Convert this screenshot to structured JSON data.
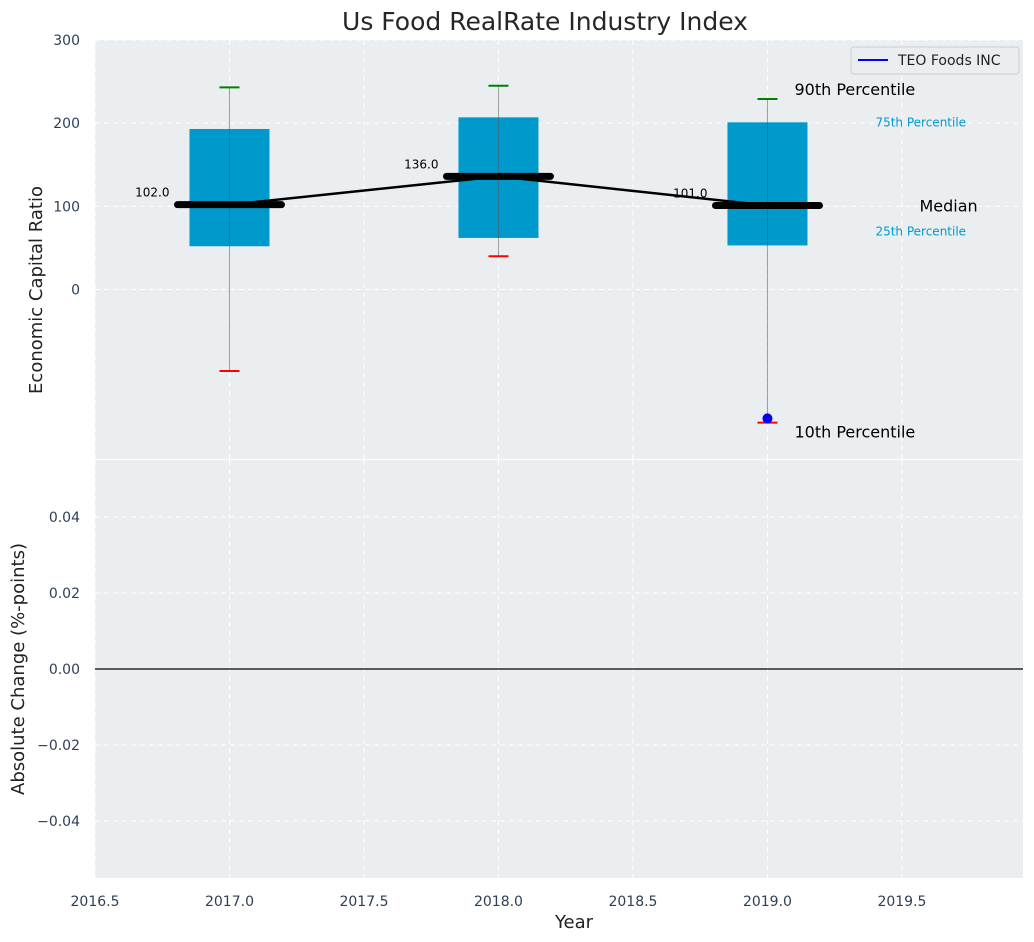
{
  "title": "Us Food RealRate Industry Index",
  "colors": {
    "panel_bg": "#eaeef0",
    "box": "#0099cc",
    "whisker_high": "#008000",
    "whisker_low": "#ff0000",
    "median": "#000000",
    "company": "#0000ff",
    "annot_small": "#0099cc"
  },
  "chart_data": [
    {
      "type": "box",
      "ylabel": "Economic Capital Ratio",
      "ylim": [
        -205,
        300
      ],
      "yticks": [
        0,
        100,
        200,
        300
      ],
      "ytick_labels": [
        "0",
        "100",
        "200",
        "300"
      ],
      "xlim": [
        2016.5,
        2019.95
      ],
      "grid": true,
      "boxes": [
        {
          "x": 2017,
          "p10": -98,
          "p25": 52,
          "median": 102,
          "p75": 193,
          "p90": 243,
          "label": "102.0"
        },
        {
          "x": 2018,
          "p10": 40,
          "p25": 62,
          "median": 136,
          "p75": 207,
          "p90": 245,
          "label": "136.0"
        },
        {
          "x": 2019,
          "p10": -160,
          "p25": 53,
          "median": 101,
          "p75": 201,
          "p90": 229,
          "label": "101.0"
        }
      ],
      "company_series": {
        "name": "TEO Foods INC",
        "points": [
          {
            "x": 2019,
            "y": -155
          }
        ]
      },
      "legend": {
        "position": "top-right",
        "entries": [
          "TEO Foods INC"
        ]
      },
      "annotations": {
        "p90": "90th Percentile",
        "p75": "75th Percentile",
        "median": "Median",
        "p25": "25th Percentile",
        "p10": "10th Percentile"
      }
    },
    {
      "type": "line",
      "xlabel": "Year",
      "ylabel": "Absolute Change (%-points)",
      "ylim": [
        -0.055,
        0.055
      ],
      "yticks": [
        -0.04,
        -0.02,
        0.0,
        0.02,
        0.04
      ],
      "ytick_labels": [
        "−0.04",
        "−0.02",
        "0.00",
        "0.02",
        "0.04"
      ],
      "xlim": [
        2016.5,
        2019.95
      ],
      "xticks": [
        2016.5,
        2017.0,
        2017.5,
        2018.0,
        2018.5,
        2019.0,
        2019.5
      ],
      "xtick_labels": [
        "2016.5",
        "2017.0",
        "2017.5",
        "2018.0",
        "2018.5",
        "2019.0",
        "2019.5"
      ],
      "grid": true,
      "zero_line": 0
    }
  ]
}
